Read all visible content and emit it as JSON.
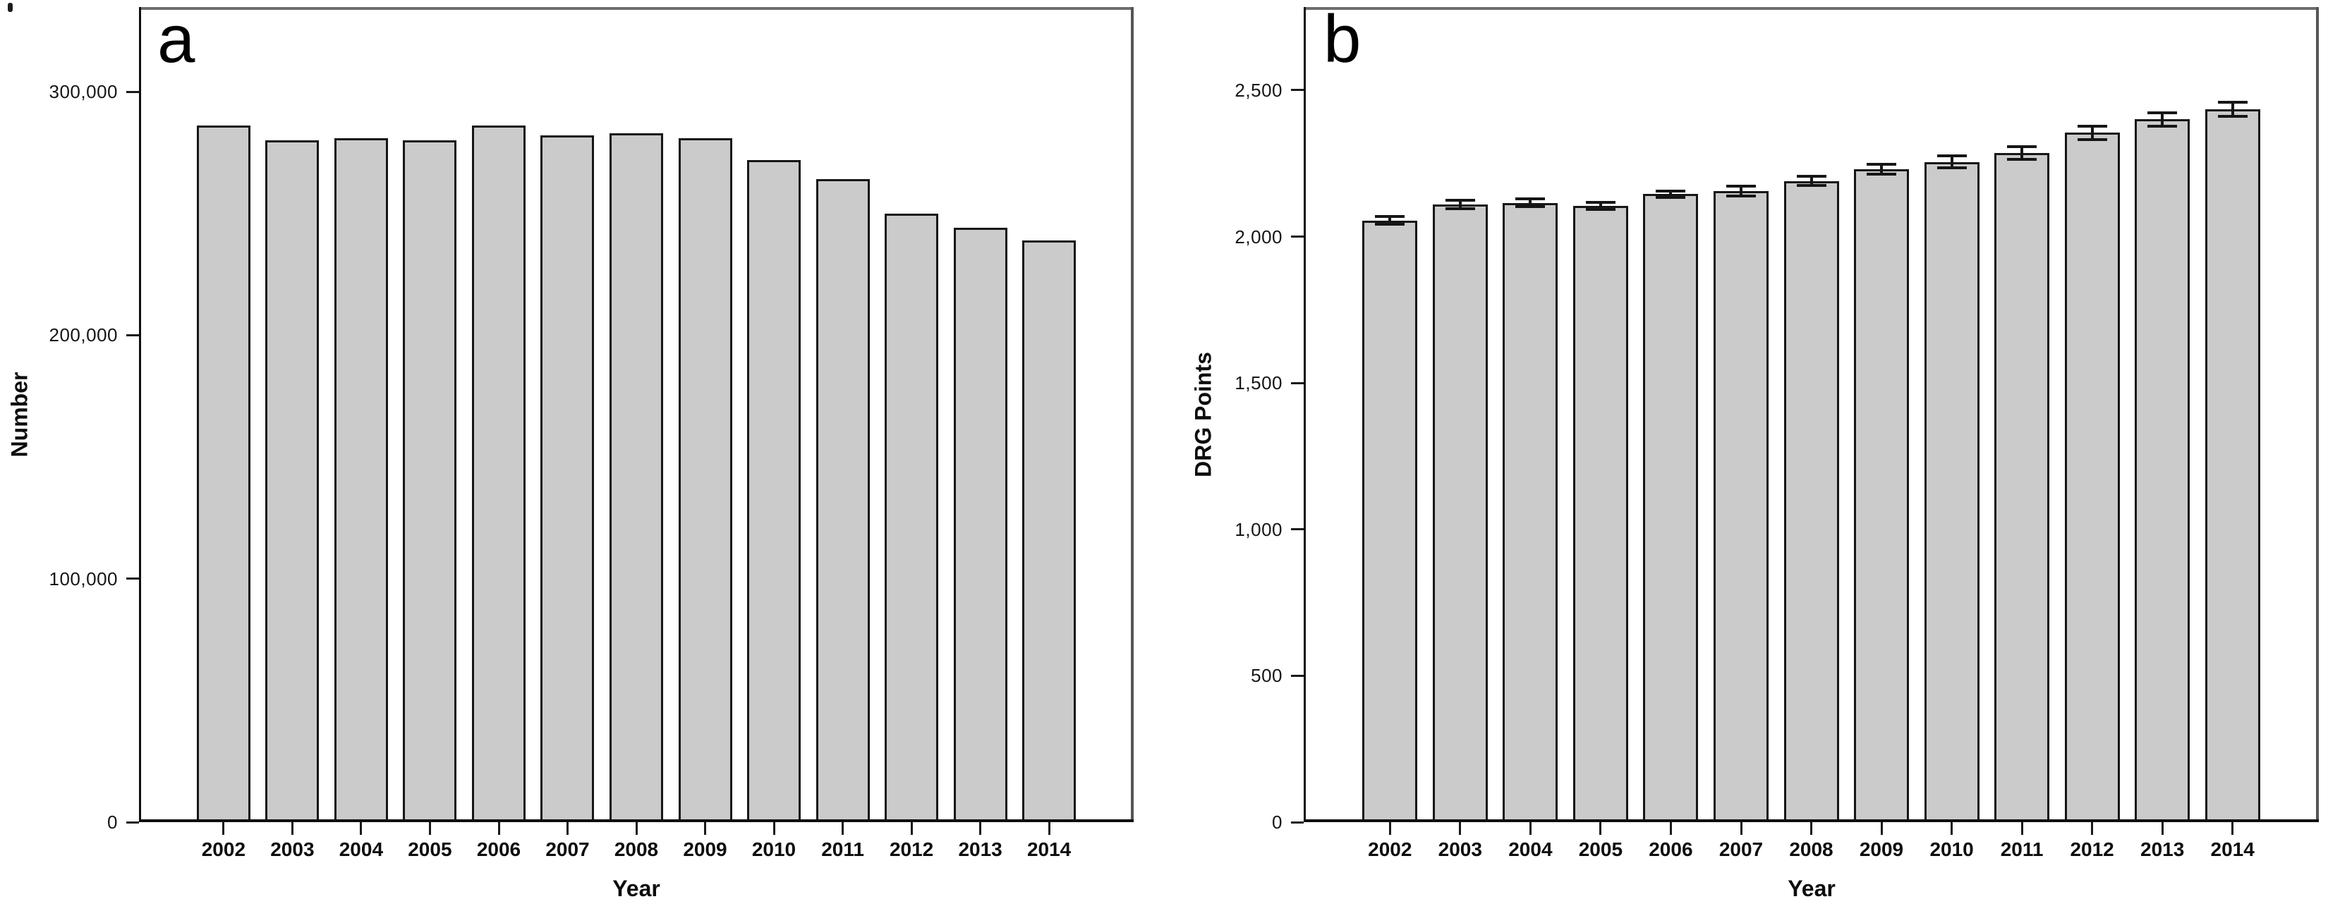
{
  "colors": {
    "background": "#ffffff",
    "bar_fill": "#cbcbcb",
    "bar_border": "#161616",
    "error_bar": "#161616",
    "axis_line": "#0f0f0f",
    "plot_border_side": "#555555",
    "plot_border_top": "#6e6e6e",
    "tick": "#1a1a1a",
    "text": "#0d0d0d"
  },
  "chart_data": [
    {
      "type": "bar",
      "panel_label": "a",
      "title": "",
      "xlabel": "Year",
      "ylabel": "Number",
      "categories": [
        "2002",
        "2003",
        "2004",
        "2005",
        "2006",
        "2007",
        "2008",
        "2009",
        "2010",
        "2011",
        "2012",
        "2013",
        "2014"
      ],
      "values": [
        286000,
        280000,
        281000,
        280000,
        286000,
        282000,
        283000,
        281000,
        272000,
        264000,
        250000,
        244000,
        239000
      ],
      "error_bars": false,
      "y_ticks": [
        {
          "value": 0,
          "label": "0"
        },
        {
          "value": 100000,
          "label": "100,000"
        },
        {
          "value": 200000,
          "label": "200,000"
        },
        {
          "value": 300000,
          "label": "300,000"
        }
      ],
      "ylim": [
        0,
        334750
      ],
      "grid": false,
      "legend": "none"
    },
    {
      "type": "bar",
      "panel_label": "b",
      "title": "",
      "xlabel": "Year",
      "ylabel": "DRG Points",
      "categories": [
        "2002",
        "2003",
        "2004",
        "2005",
        "2006",
        "2007",
        "2008",
        "2009",
        "2010",
        "2011",
        "2012",
        "2013",
        "2014"
      ],
      "values": [
        2055,
        2110,
        2115,
        2105,
        2145,
        2155,
        2190,
        2230,
        2255,
        2285,
        2355,
        2400,
        2435
      ],
      "errors": [
        18,
        20,
        18,
        18,
        16,
        22,
        20,
        22,
        25,
        26,
        28,
        28,
        30
      ],
      "error_bars": true,
      "y_ticks": [
        {
          "value": 0,
          "label": "0"
        },
        {
          "value": 500,
          "label": "500"
        },
        {
          "value": 1000,
          "label": "1,000"
        },
        {
          "value": 1500,
          "label": "1,500"
        },
        {
          "value": 2000,
          "label": "2,000"
        },
        {
          "value": 2500,
          "label": "2,500"
        }
      ],
      "ylim": [
        0,
        2784
      ],
      "grid": false,
      "legend": "none"
    }
  ]
}
